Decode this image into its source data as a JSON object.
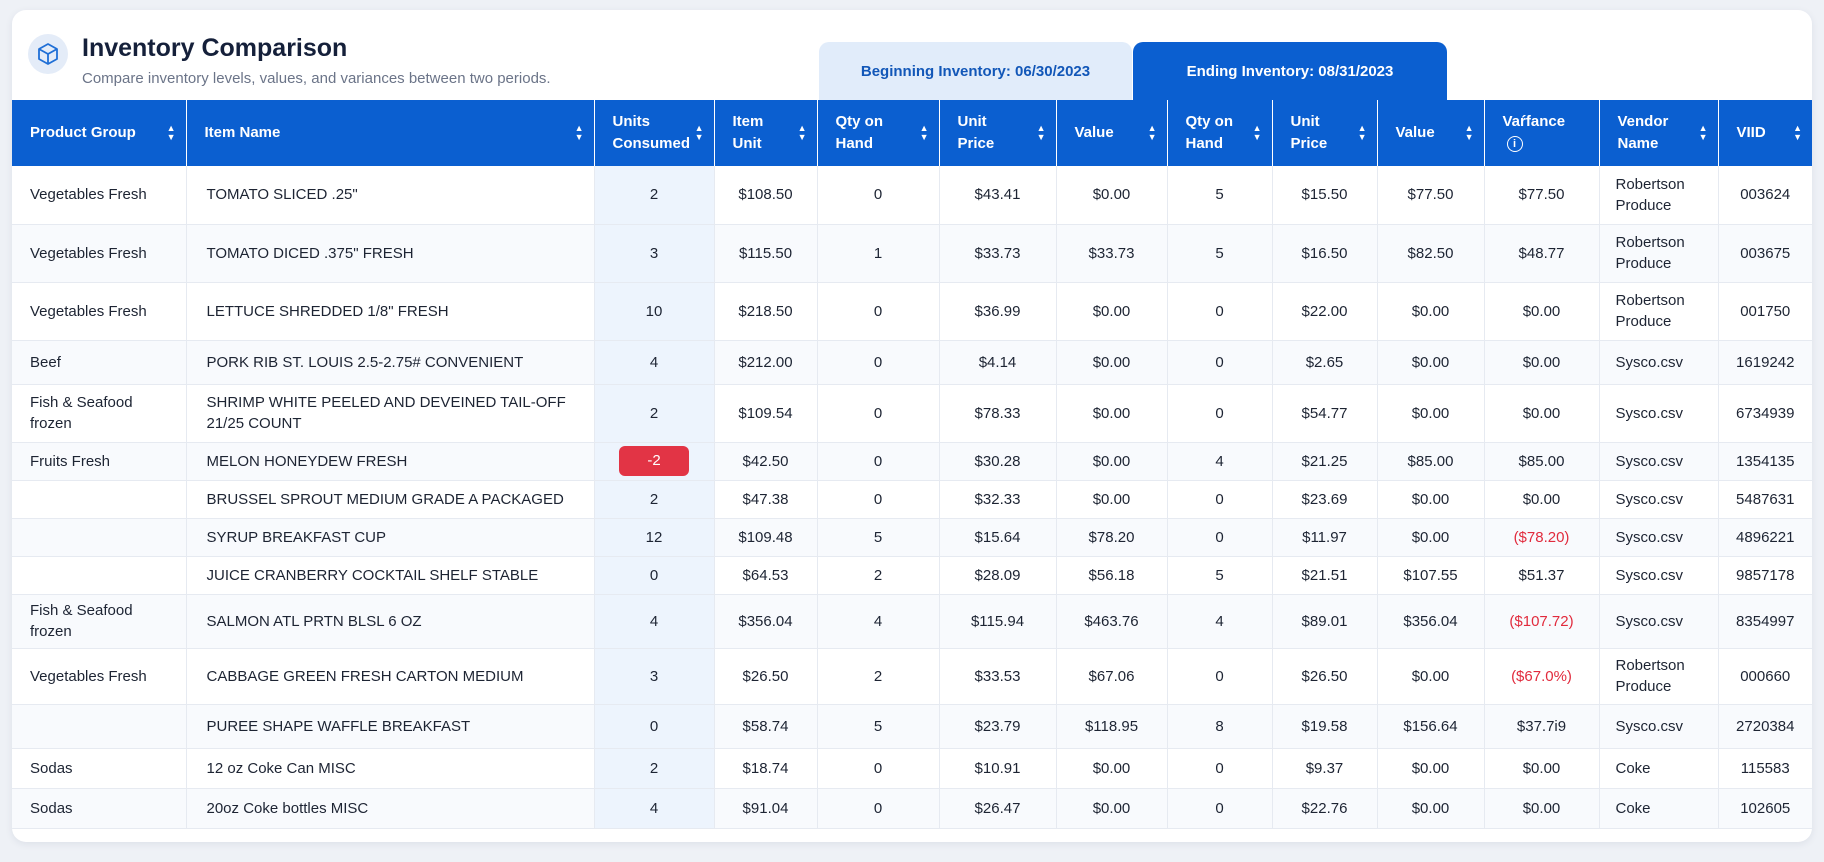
{
  "header": {
    "title": "Inventory Comparison",
    "subtitle": "Compare inventory levels, values, and variances between two periods.",
    "logo_icon": "box-icon"
  },
  "periods": {
    "beginning": "Beginning Inventory: 06/30/2023",
    "ending": "Ending Inventory: 08/31/2023"
  },
  "colors": {
    "header_bg": "#0b5fd0",
    "negative": "#e12b3d",
    "badge_negative": "#e23445",
    "tab_inactive_bg": "#e1ecfa"
  },
  "columns": {
    "product_group": "Product Group",
    "item_name": "Item Name",
    "units_consumed_1": "Units",
    "units_consumed_2": "Consumed",
    "item_unit_1": "Item",
    "item_unit_2": "Unit",
    "b_qty_1": "Qty on",
    "b_qty_2": "Hand",
    "b_price_1": "Unit",
    "b_price_2": "Price",
    "b_value": "Value",
    "e_qty_1": "Qty on",
    "e_qty_2": "Hand",
    "e_price_1": "Unit",
    "e_price_2": "Price",
    "e_value": "Value",
    "variance": "Vaŕfance",
    "vendor_1": "Vendor",
    "vendor_2": "Name",
    "viid": "VIID"
  },
  "rows": [
    {
      "group": "Vegetables Fresh",
      "item": "TOMATO SLICED .25\"",
      "consumed": "2",
      "unit": "$108.50",
      "bq": "0",
      "bp": "$43.41",
      "bv": "$0.00",
      "eq": "5",
      "ep": "$15.50",
      "ev": "$77.50",
      "var": "$77.50",
      "vendor": "Robertson Produce",
      "viid": "003624"
    },
    {
      "group": "Vegetables Fresh",
      "item": "TOMATO DICED .375\" FRESH",
      "consumed": "3",
      "unit": "$115.50",
      "bq": "1",
      "bp": "$33.73",
      "bv": "$33.73",
      "eq": "5",
      "ep": "$16.50",
      "ev": "$82.50",
      "var": "$48.77",
      "vendor": "Robertson Produce",
      "viid": "003675"
    },
    {
      "group": "Vegetables Fresh",
      "item": "LETTUCE SHREDDED 1/8\" FRESH",
      "consumed": "10",
      "unit": "$218.50",
      "bq": "0",
      "bp": "$36.99",
      "bv": "$0.00",
      "eq": "0",
      "ep": "$22.00",
      "ev": "$0.00",
      "var": "$0.00",
      "vendor": "Robertson Produce",
      "viid": "001750"
    },
    {
      "group": "Beef",
      "item": "PORK RIB ST. LOUIS 2.5-2.75# CONVENIENT",
      "consumed": "4",
      "unit": "$212.00",
      "bq": "0",
      "bp": "$4.14",
      "bv": "$0.00",
      "eq": "0",
      "ep": "$2.65",
      "ev": "$0.00",
      "var": "$0.00",
      "vendor": "Sysco.csv",
      "viid": "1619242"
    },
    {
      "group": "Fish & Seafood frozen",
      "item": "SHRIMP WHITE PEELED AND DEVEINED TAIL-OFF 21/25 COUNT",
      "consumed": "2",
      "unit": "$109.54",
      "bq": "0",
      "bp": "$78.33",
      "bv": "$0.00",
      "eq": "0",
      "ep": "$54.77",
      "ev": "$0.00",
      "var": "$0.00",
      "vendor": "Sysco.csv",
      "viid": "6734939"
    },
    {
      "group": "Fruits Fresh",
      "item": "MELON HONEYDEW FRESH",
      "consumed": "-2",
      "unit": "$42.50",
      "bq": "0",
      "bp": "$30.28",
      "bv": "$0.00",
      "eq": "4",
      "ep": "$21.25",
      "ev": "$85.00",
      "var": "$85.00",
      "vendor": "Sysco.csv",
      "viid": "1354135"
    },
    {
      "group": "",
      "item": "BRUSSEL SPROUT MEDIUM GRADE A PACKAGED",
      "consumed": "2",
      "unit": "$47.38",
      "bq": "0",
      "bp": "$32.33",
      "bv": "$0.00",
      "eq": "0",
      "ep": "$23.69",
      "ev": "$0.00",
      "var": "$0.00",
      "vendor": "Sysco.csv",
      "viid": "5487631"
    },
    {
      "group": "",
      "item": "SYRUP BREAKFAST CUP",
      "consumed": "12",
      "unit": "$109.48",
      "bq": "5",
      "bp": "$15.64",
      "bv": "$78.20",
      "eq": "0",
      "ep": "$11.97",
      "ev": "$0.00",
      "var": "($78.20)",
      "vendor": "Sysco.csv",
      "viid": "4896221"
    },
    {
      "group": "",
      "item": "JUICE CRANBERRY COCKTAIL SHELF STABLE",
      "consumed": "0",
      "unit": "$64.53",
      "bq": "2",
      "bp": "$28.09",
      "bv": "$56.18",
      "eq": "5",
      "ep": "$21.51",
      "ev": "$107.55",
      "var": "$51.37",
      "vendor": "Sysco.csv",
      "viid": "9857178"
    },
    {
      "group": "Fish & Seafood frozen",
      "item": "SALMON ATL PRTN BLSL 6 OZ",
      "consumed": "4",
      "unit": "$356.04",
      "bq": "4",
      "bp": "$115.94",
      "bv": "$463.76",
      "eq": "4",
      "ep": "$89.01",
      "ev": "$356.04",
      "var": "($107.72)",
      "vendor": "Sysco.csv",
      "viid": "8354997"
    },
    {
      "group": "Vegetables Fresh",
      "item": "CABBAGE GREEN FRESH CARTON MEDIUM",
      "consumed": "3",
      "unit": "$26.50",
      "bq": "2",
      "bp": "$33.53",
      "bv": "$67.06",
      "eq": "0",
      "ep": "$26.50",
      "ev": "$0.00",
      "var": "($67.0%)",
      "vendor": "Robertson Produce",
      "viid": "000660"
    },
    {
      "group": "",
      "item": "PUREE SHAPE WAFFLE BREAKFAST",
      "consumed": "0",
      "unit": "$58.74",
      "bq": "5",
      "bp": "$23.79",
      "bv": "$118.95",
      "eq": "8",
      "ep": "$19.58",
      "ev": "$156.64",
      "var": "$37.7i9",
      "vendor": "Sysco.csv",
      "viid": "2720384"
    },
    {
      "group": "Sodas",
      "item": "12 oz Coke Can MISC",
      "consumed": "2",
      "unit": "$18.74",
      "bq": "0",
      "bp": "$10.91",
      "bv": "$0.00",
      "eq": "0",
      "ep": "$9.37",
      "ev": "$0.00",
      "var": "$0.00",
      "vendor": "Coke",
      "viid": "115583"
    },
    {
      "group": "Sodas",
      "item": "20oz Coke bottles MISC",
      "consumed": "4",
      "unit": "$91.04",
      "bq": "0",
      "bp": "$26.47",
      "bv": "$0.00",
      "eq": "0",
      "ep": "$22.76",
      "ev": "$0.00",
      "var": "$0.00",
      "vendor": "Coke",
      "viid": "102605"
    }
  ]
}
